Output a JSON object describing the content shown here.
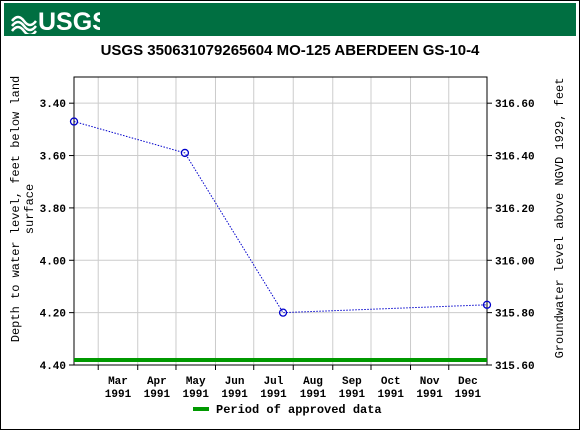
{
  "header": {
    "agency": "USGS",
    "banner_color": "#006f41"
  },
  "chart_data": {
    "type": "line",
    "title": "USGS 350631079265604 MO-125 ABERDEEN GS-10-4",
    "ylabel_left": "Depth to water level, feet below land surface",
    "ylabel_right": "Groundwater level above NGVD 1929, feet",
    "y_left_lim": [
      3.3,
      4.4
    ],
    "y_right_lim": [
      315.6,
      316.7
    ],
    "y_left_ticks": [
      "3.40",
      "3.60",
      "3.80",
      "4.00",
      "4.20",
      "4.40"
    ],
    "y_right_ticks": [
      "316.60",
      "316.40",
      "316.20",
      "316.00",
      "315.80",
      "315.60"
    ],
    "x_ticks": [
      {
        "month": "Mar",
        "year": "1991",
        "date": "1991-03-01"
      },
      {
        "month": "Apr",
        "year": "1991",
        "date": "1991-04-01"
      },
      {
        "month": "May",
        "year": "1991",
        "date": "1991-05-01"
      },
      {
        "month": "Jun",
        "year": "1991",
        "date": "1991-06-01"
      },
      {
        "month": "Jul",
        "year": "1991",
        "date": "1991-07-01"
      },
      {
        "month": "Aug",
        "year": "1991",
        "date": "1991-08-01"
      },
      {
        "month": "Sep",
        "year": "1991",
        "date": "1991-09-01"
      },
      {
        "month": "Oct",
        "year": "1991",
        "date": "1991-10-01"
      },
      {
        "month": "Nov",
        "year": "1991",
        "date": "1991-11-01"
      },
      {
        "month": "Dec",
        "year": "1991",
        "date": "1991-12-01"
      }
    ],
    "x_range": [
      "1991-02-10",
      "1991-12-31"
    ],
    "series": [
      {
        "color": "#0000cc",
        "points": [
          {
            "date": "1991-02-10",
            "depth": 3.47
          },
          {
            "date": "1991-05-08",
            "depth": 3.59
          },
          {
            "date": "1991-07-24",
            "depth": 4.2
          },
          {
            "date": "1991-12-31",
            "depth": 4.17
          }
        ]
      }
    ],
    "approved_period": {
      "label": "Period of approved data",
      "color": "#009900",
      "start": "1991-02-10",
      "end": "1991-12-31"
    },
    "grid": true
  }
}
